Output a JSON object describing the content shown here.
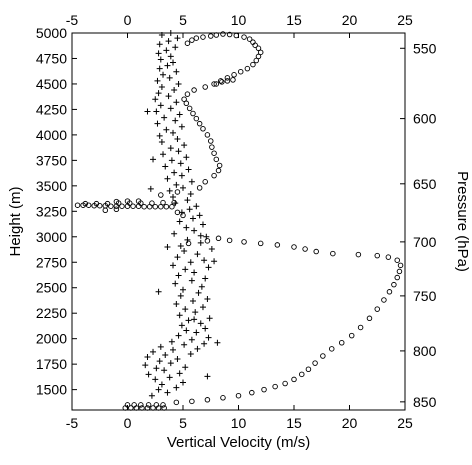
{
  "chart_data": {
    "type": "scatter",
    "title": "",
    "xlabel": "Vertical Velocity (m/s)",
    "ylabel": "Height (m)",
    "y2label": "Pressure (hPa)",
    "xlim": [
      -5,
      25
    ],
    "ylim": [
      1300,
      5000
    ],
    "xticks": [
      -5,
      0,
      5,
      10,
      15,
      20,
      25
    ],
    "yticks": [
      1500,
      1750,
      2000,
      2250,
      2500,
      2750,
      3000,
      3250,
      3500,
      3750,
      4000,
      4250,
      4500,
      4750,
      5000
    ],
    "top_xticks": [
      -5,
      0,
      5,
      10,
      15,
      20,
      25
    ],
    "pressure_ticks": [
      {
        "label": "550",
        "height": 4850
      },
      {
        "label": "600",
        "height": 4160
      },
      {
        "label": "650",
        "height": 3520
      },
      {
        "label": "700",
        "height": 2950
      },
      {
        "label": "750",
        "height": 2420
      },
      {
        "label": "800",
        "height": 1880
      },
      {
        "label": "850",
        "height": 1380
      }
    ],
    "grid": false,
    "legend": "none",
    "series": [
      {
        "marker": "circle",
        "values": [
          [
            -0.2,
            1320
          ],
          [
            0.3,
            1320
          ],
          [
            0.8,
            1320
          ],
          [
            1.3,
            1320
          ],
          [
            1.8,
            1320
          ],
          [
            2.3,
            1320
          ],
          [
            2.8,
            1320
          ],
          [
            3.3,
            1320
          ],
          [
            0.0,
            1350
          ],
          [
            0.6,
            1350
          ],
          [
            1.2,
            1350
          ],
          [
            1.9,
            1350
          ],
          [
            2.6,
            1350
          ],
          [
            3.2,
            1350
          ],
          [
            4.4,
            1375
          ],
          [
            5.8,
            1385
          ],
          [
            7.2,
            1400
          ],
          [
            8.6,
            1420
          ],
          [
            10.0,
            1440
          ],
          [
            11.2,
            1470
          ],
          [
            12.3,
            1500
          ],
          [
            13.3,
            1530
          ],
          [
            14.2,
            1560
          ],
          [
            15.0,
            1600
          ],
          [
            15.7,
            1650
          ],
          [
            16.3,
            1700
          ],
          [
            16.9,
            1760
          ],
          [
            17.6,
            1830
          ],
          [
            18.4,
            1900
          ],
          [
            19.3,
            1960
          ],
          [
            20.2,
            2030
          ],
          [
            21.0,
            2110
          ],
          [
            21.8,
            2200
          ],
          [
            22.5,
            2290
          ],
          [
            23.1,
            2380
          ],
          [
            23.6,
            2460
          ],
          [
            24.0,
            2530
          ],
          [
            24.3,
            2600
          ],
          [
            24.5,
            2660
          ],
          [
            24.6,
            2720
          ],
          [
            24.3,
            2770
          ],
          [
            23.5,
            2800
          ],
          [
            22.5,
            2815
          ],
          [
            20.8,
            2825
          ],
          [
            18.5,
            2835
          ],
          [
            17.0,
            2855
          ],
          [
            16.0,
            2880
          ],
          [
            15.0,
            2900
          ],
          [
            13.5,
            2920
          ],
          [
            12.0,
            2935
          ],
          [
            10.5,
            2950
          ],
          [
            9.2,
            2965
          ],
          [
            8.2,
            2985
          ],
          [
            7.2,
            2960
          ],
          [
            5.5,
            2935
          ],
          [
            5.0,
            3210
          ],
          [
            4.5,
            3240
          ],
          [
            -2.0,
            3260
          ],
          [
            -1.0,
            3270
          ],
          [
            -4.5,
            3310
          ],
          [
            -4.0,
            3310
          ],
          [
            -3.5,
            3310
          ],
          [
            -3.0,
            3305
          ],
          [
            -2.5,
            3305
          ],
          [
            -2.0,
            3305
          ],
          [
            -1.5,
            3300
          ],
          [
            -1.0,
            3300
          ],
          [
            -0.5,
            3300
          ],
          [
            0.0,
            3300
          ],
          [
            0.5,
            3300
          ],
          [
            1.0,
            3300
          ],
          [
            1.5,
            3295
          ],
          [
            2.0,
            3295
          ],
          [
            2.5,
            3295
          ],
          [
            3.0,
            3295
          ],
          [
            3.5,
            3295
          ],
          [
            4.0,
            3295
          ],
          [
            -3.8,
            3325
          ],
          [
            -2.8,
            3325
          ],
          [
            -1.8,
            3325
          ],
          [
            -0.8,
            3330
          ],
          [
            0.2,
            3330
          ],
          [
            1.2,
            3330
          ],
          [
            2.2,
            3330
          ],
          [
            3.2,
            3335
          ],
          [
            4.2,
            3335
          ],
          [
            -1.0,
            3345
          ],
          [
            0.0,
            3350
          ],
          [
            1.0,
            3350
          ],
          [
            3.0,
            3410
          ],
          [
            4.5,
            3440
          ],
          [
            6.5,
            3480
          ],
          [
            7.0,
            3540
          ],
          [
            7.8,
            3600
          ],
          [
            8.2,
            3650
          ],
          [
            8.3,
            3700
          ],
          [
            8.0,
            3760
          ],
          [
            7.8,
            3820
          ],
          [
            7.6,
            3880
          ],
          [
            7.5,
            3940
          ],
          [
            7.2,
            4000
          ],
          [
            6.8,
            4060
          ],
          [
            6.5,
            4110
          ],
          [
            6.2,
            4160
          ],
          [
            5.9,
            4210
          ],
          [
            5.6,
            4260
          ],
          [
            5.3,
            4310
          ],
          [
            5.1,
            4350
          ],
          [
            5.4,
            4400
          ],
          [
            6.0,
            4440
          ],
          [
            7.0,
            4470
          ],
          [
            7.8,
            4500
          ],
          [
            8.4,
            4530
          ],
          [
            9.0,
            4560
          ],
          [
            9.6,
            4590
          ],
          [
            10.2,
            4620
          ],
          [
            10.8,
            4650
          ],
          [
            11.3,
            4690
          ],
          [
            11.6,
            4730
          ],
          [
            11.8,
            4770
          ],
          [
            12.0,
            4810
          ],
          [
            11.8,
            4850
          ],
          [
            11.5,
            4880
          ],
          [
            11.3,
            4910
          ],
          [
            11.0,
            4940
          ],
          [
            10.5,
            4960
          ],
          [
            9.8,
            4975
          ],
          [
            9.2,
            4985
          ],
          [
            8.6,
            4990
          ],
          [
            8.0,
            4980
          ],
          [
            7.5,
            4970
          ],
          [
            6.8,
            4960
          ],
          [
            6.2,
            4950
          ],
          [
            5.8,
            4930
          ],
          [
            5.4,
            4900
          ],
          [
            8.0,
            4500
          ],
          [
            8.5,
            4520
          ],
          [
            9.0,
            4530
          ],
          [
            9.5,
            4540
          ]
        ]
      },
      {
        "marker": "plus",
        "values": [
          [
            2.2,
            1440
          ],
          [
            3.6,
            1470
          ],
          [
            2.8,
            1500
          ],
          [
            4.4,
            1520
          ],
          [
            3.1,
            1550
          ],
          [
            5.0,
            1570
          ],
          [
            2.5,
            1600
          ],
          [
            3.8,
            1620
          ],
          [
            1.9,
            1650
          ],
          [
            4.7,
            1660
          ],
          [
            3.3,
            1690
          ],
          [
            2.6,
            1710
          ],
          [
            5.2,
            1720
          ],
          [
            1.6,
            1740
          ],
          [
            3.9,
            1760
          ],
          [
            2.9,
            1780
          ],
          [
            4.5,
            1800
          ],
          [
            1.8,
            1820
          ],
          [
            3.4,
            1840
          ],
          [
            5.7,
            1850
          ],
          [
            2.3,
            1870
          ],
          [
            4.1,
            1890
          ],
          [
            6.3,
            1900
          ],
          [
            3.0,
            1920
          ],
          [
            5.1,
            1940
          ],
          [
            6.9,
            1950
          ],
          [
            4.0,
            1970
          ],
          [
            5.8,
            1990
          ],
          [
            7.3,
            2010
          ],
          [
            4.6,
            2030
          ],
          [
            6.2,
            2060
          ],
          [
            5.3,
            2080
          ],
          [
            7.0,
            2100
          ],
          [
            4.9,
            2130
          ],
          [
            6.6,
            2150
          ],
          [
            5.5,
            2180
          ],
          [
            7.4,
            2200
          ],
          [
            4.7,
            2230
          ],
          [
            6.1,
            2260
          ],
          [
            5.2,
            2290
          ],
          [
            6.8,
            2310
          ],
          [
            4.4,
            2340
          ],
          [
            5.9,
            2370
          ],
          [
            7.2,
            2390
          ],
          [
            4.8,
            2420
          ],
          [
            6.4,
            2450
          ],
          [
            5.0,
            2480
          ],
          [
            6.7,
            2510
          ],
          [
            4.3,
            2540
          ],
          [
            5.8,
            2570
          ],
          [
            7.0,
            2590
          ],
          [
            4.6,
            2620
          ],
          [
            6.0,
            2650
          ],
          [
            5.2,
            2680
          ],
          [
            7.3,
            2700
          ],
          [
            4.1,
            2720
          ],
          [
            5.7,
            2750
          ],
          [
            6.9,
            2770
          ],
          [
            4.5,
            2800
          ],
          [
            6.3,
            2830
          ],
          [
            5.1,
            2860
          ],
          [
            7.6,
            2880
          ],
          [
            4.8,
            2910
          ],
          [
            6.6,
            2940
          ],
          [
            5.4,
            2970
          ],
          [
            7.1,
            3000
          ],
          [
            4.2,
            3030
          ],
          [
            6.0,
            3060
          ],
          [
            5.3,
            3090
          ],
          [
            6.8,
            3120
          ],
          [
            4.7,
            3150
          ],
          [
            5.9,
            3180
          ],
          [
            6.5,
            3210
          ],
          [
            4.9,
            3240
          ],
          [
            5.6,
            3270
          ],
          [
            6.2,
            3300
          ],
          [
            4.3,
            3330
          ],
          [
            5.4,
            3360
          ],
          [
            4.1,
            3390
          ],
          [
            5.7,
            3420
          ],
          [
            3.8,
            3450
          ],
          [
            5.0,
            3480
          ],
          [
            4.4,
            3510
          ],
          [
            5.8,
            3540
          ],
          [
            3.6,
            3570
          ],
          [
            4.9,
            3600
          ],
          [
            4.2,
            3630
          ],
          [
            5.5,
            3660
          ],
          [
            3.4,
            3690
          ],
          [
            4.8,
            3720
          ],
          [
            4.0,
            3750
          ],
          [
            5.3,
            3780
          ],
          [
            3.2,
            3810
          ],
          [
            4.6,
            3840
          ],
          [
            3.9,
            3870
          ],
          [
            5.1,
            3900
          ],
          [
            3.1,
            3930
          ],
          [
            4.5,
            3960
          ],
          [
            2.9,
            3990
          ],
          [
            4.1,
            4020
          ],
          [
            3.5,
            4050
          ],
          [
            4.9,
            4080
          ],
          [
            2.7,
            4110
          ],
          [
            4.3,
            4140
          ],
          [
            3.3,
            4170
          ],
          [
            4.7,
            4200
          ],
          [
            2.6,
            4230
          ],
          [
            3.9,
            4260
          ],
          [
            3.0,
            4290
          ],
          [
            4.4,
            4320
          ],
          [
            2.5,
            4350
          ],
          [
            3.7,
            4380
          ],
          [
            2.8,
            4410
          ],
          [
            4.2,
            4440
          ],
          [
            3.1,
            4470
          ],
          [
            4.6,
            4500
          ],
          [
            2.7,
            4530
          ],
          [
            3.8,
            4560
          ],
          [
            3.2,
            4590
          ],
          [
            4.4,
            4620
          ],
          [
            2.9,
            4650
          ],
          [
            3.6,
            4680
          ],
          [
            4.1,
            4710
          ],
          [
            3.0,
            4740
          ],
          [
            3.9,
            4770
          ],
          [
            2.8,
            4800
          ],
          [
            3.5,
            4830
          ],
          [
            4.3,
            4860
          ],
          [
            2.9,
            4890
          ],
          [
            3.7,
            4920
          ],
          [
            4.5,
            4950
          ],
          [
            3.1,
            4980
          ],
          [
            3.9,
            5000
          ],
          [
            7.2,
            1630
          ],
          [
            8.1,
            1960
          ],
          [
            6.0,
            2190
          ],
          [
            2.8,
            2460
          ],
          [
            3.6,
            2900
          ],
          [
            2.1,
            3470
          ],
          [
            6.6,
            3010
          ],
          [
            7.8,
            2760
          ],
          [
            1.8,
            4230
          ],
          [
            2.3,
            3760
          ]
        ]
      }
    ]
  }
}
